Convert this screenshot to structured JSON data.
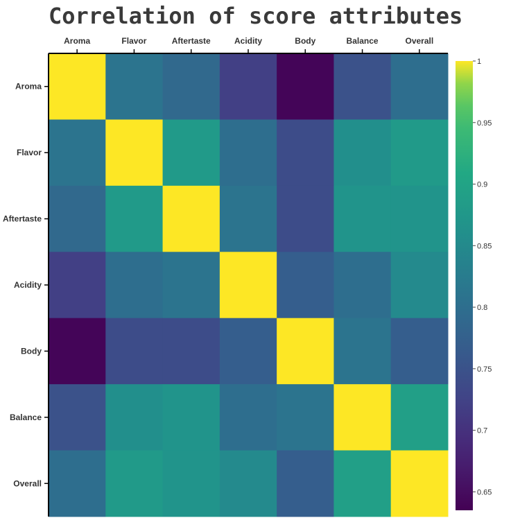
{
  "chart_data": {
    "type": "heatmap",
    "title": "Correlation of score attributes",
    "x_labels": [
      "Aroma",
      "Flavor",
      "Aftertaste",
      "Acidity",
      "Body",
      "Balance",
      "Overall"
    ],
    "y_labels": [
      "Aroma",
      "Flavor",
      "Aftertaste",
      "Acidity",
      "Body",
      "Balance",
      "Overall"
    ],
    "matrix": [
      [
        1.0,
        0.81,
        0.79,
        0.72,
        0.64,
        0.75,
        0.8
      ],
      [
        0.81,
        1.0,
        0.88,
        0.8,
        0.74,
        0.86,
        0.88
      ],
      [
        0.79,
        0.88,
        1.0,
        0.81,
        0.74,
        0.87,
        0.87
      ],
      [
        0.72,
        0.8,
        0.81,
        1.0,
        0.77,
        0.8,
        0.85
      ],
      [
        0.64,
        0.74,
        0.74,
        0.77,
        1.0,
        0.81,
        0.77
      ],
      [
        0.75,
        0.86,
        0.87,
        0.8,
        0.81,
        1.0,
        0.89
      ],
      [
        0.8,
        0.88,
        0.87,
        0.85,
        0.77,
        0.89,
        1.0
      ]
    ],
    "colorbar": {
      "min": 0.635,
      "max": 1.0,
      "ticks": [
        1,
        0.95,
        0.9,
        0.85,
        0.8,
        0.75,
        0.7,
        0.65
      ],
      "tick_labels": [
        "1",
        "0.95",
        "0.9",
        "0.85",
        "0.8",
        "0.75",
        "0.7",
        "0.65"
      ]
    },
    "colormap": "viridis",
    "grid": false
  }
}
